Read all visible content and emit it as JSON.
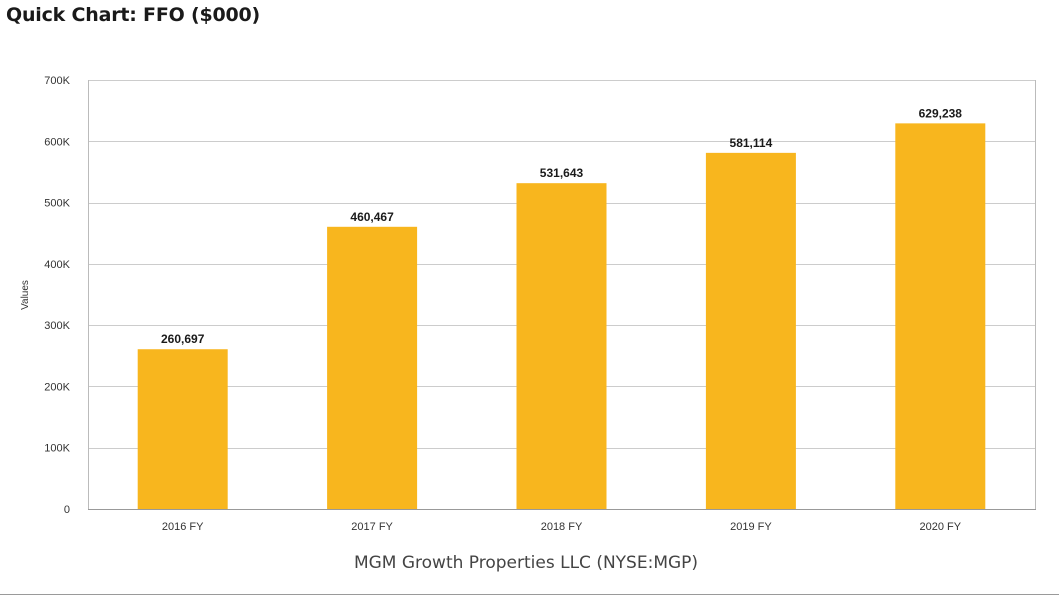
{
  "page": {
    "title": "Quick Chart: FFO ($000)"
  },
  "chart_data": {
    "type": "bar",
    "categories": [
      "2016 FY",
      "2017 FY",
      "2018 FY",
      "2019 FY",
      "2020 FY"
    ],
    "values": [
      260697,
      460467,
      531643,
      581114,
      629238
    ],
    "data_labels": [
      "260,697",
      "460,467",
      "531,643",
      "581,114",
      "629,238"
    ],
    "ylabel": "Values",
    "xlabel": "MGM Growth Properties LLC (NYSE:MGP)",
    "ylim": [
      0,
      700000
    ],
    "yticks": [
      0,
      100000,
      200000,
      300000,
      400000,
      500000,
      600000,
      700000
    ],
    "ytick_labels": [
      "0",
      "100K",
      "200K",
      "300K",
      "400K",
      "500K",
      "600K",
      "700K"
    ],
    "grid": true,
    "legend": "none",
    "colors": {
      "bar": "#F8B61E",
      "grid": "#cccccc",
      "axis": "#999999",
      "text": "#333333"
    }
  }
}
